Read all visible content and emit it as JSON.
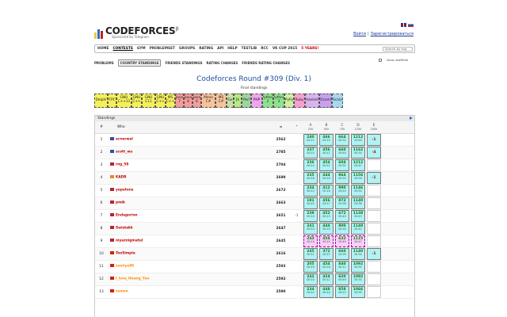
{
  "header": {
    "logo_text": "CODEFORCES",
    "logo_beta": "β",
    "logo_sub": "Sponsored by Telegram",
    "login": "Войти",
    "register": "Зарегистрироваться",
    "auth_sep": "|",
    "colors": {
      "bar1": "#f6c43b",
      "bar2": "#2b6cc4",
      "bar3": "#c51f1f"
    }
  },
  "menu": {
    "items": [
      "HOME",
      "CONTESTS",
      "GYM",
      "PROBLEMSET",
      "GROUPS",
      "RATING",
      "API",
      "HELP",
      "TESTLIB",
      "RCC",
      "VK CUP 2015",
      "5 YEARS!"
    ],
    "active": "CONTESTS",
    "search_placeholder": "Search by tag"
  },
  "subnav": {
    "items": [
      "PROBLEMS",
      "COUNTRY STANDINGS",
      "FRIENDS STANDINGS",
      "RATING CHANGES",
      "FRIENDS RATING CHANGES"
    ],
    "selected": "COUNTRY STANDINGS",
    "show_unofficial": "show unofficial"
  },
  "contest": {
    "title": "Codeforces Round #309 (Div. 1)",
    "subtitle": "Final standings"
  },
  "languages": [
    {
      "label": "Delphi",
      "color": "#f4f05a"
    },
    {
      "label": "FPC",
      "color": "#f4f05a"
    },
    {
      "label": "GNU C++11",
      "color": "#f4f05a"
    },
    {
      "label": "GNU C++",
      "color": "#f4f05a"
    },
    {
      "label": "GNU C11",
      "color": "#f4f05a"
    },
    {
      "label": "GNU C++",
      "color": "#f4f05a"
    },
    {
      "label": "MS C++",
      "color": "#f4f05a"
    },
    {
      "label": "Java 7",
      "color": "#f59c9c"
    },
    {
      "label": "Java 8",
      "color": "#f59c9c"
    },
    {
      "label": "Java 6",
      "color": "#f59c9c"
    },
    {
      "label": "Mono C#",
      "color": "#f8c29a"
    },
    {
      "label": "MS C#",
      "color": "#f8c29a"
    },
    {
      "label": "Go",
      "color": "#c5e1a5"
    },
    {
      "label": "JS",
      "color": "#b8e986"
    },
    {
      "label": "Perl",
      "color": "#9fd3a0"
    },
    {
      "label": "PHP",
      "color": "#f0a5f0"
    },
    {
      "label": "Python 2",
      "color": "#8fe08f"
    },
    {
      "label": "Python 3",
      "color": "#8fe08f"
    },
    {
      "label": "PyPy",
      "color": "#d0f0a0"
    },
    {
      "label": "Ruby",
      "color": "#f5a0d0"
    },
    {
      "label": "Haskell",
      "color": "#d9b3f0"
    },
    {
      "label": "Ocaml",
      "color": "#c9a0f0"
    },
    {
      "label": "Scala",
      "color": "#a8d8f0"
    }
  ],
  "standings": {
    "heading": "Standings",
    "columns": {
      "rank": "#",
      "who": "Who",
      "points": "=",
      "penalty": "*"
    },
    "problems": [
      {
        "letter": "A",
        "max": "250"
      },
      {
        "letter": "B",
        "max": "500"
      },
      {
        "letter": "C",
        "max": "750"
      },
      {
        "letter": "D",
        "max": "1250"
      },
      {
        "letter": "E",
        "max": "2000"
      }
    ],
    "rows": [
      {
        "rank": "1",
        "who": "ecnerwal",
        "flag": "us",
        "points": "2562",
        "penalty": "",
        "cells": [
          {
            "v": "240",
            "t": "00:11"
          },
          {
            "v": "466",
            "t": "00:10"
          },
          {
            "v": "664",
            "t": "00:32"
          },
          {
            "v": "1212",
            "t": "00:49"
          },
          {
            "v": "-1",
            "r": true
          }
        ]
      },
      {
        "rank": "2",
        "who": "scott_wu",
        "flag": "us",
        "points": "2785",
        "penalty": "",
        "cells": [
          {
            "v": "237",
            "t": "00:10"
          },
          {
            "v": "456",
            "t": "00:11"
          },
          {
            "v": "660",
            "t": "00:44"
          },
          {
            "v": "1162",
            "t": "00:34"
          },
          {
            "v": "-4",
            "r": true
          }
        ]
      },
      {
        "rank": "3",
        "who": "rng_58",
        "flag": "ru",
        "points": "2704",
        "penalty": "",
        "cells": [
          {
            "v": "236",
            "t": "00:14"
          },
          {
            "v": "454",
            "t": "00:21"
          },
          {
            "v": "604",
            "t": "00:31"
          },
          {
            "v": "1212",
            "t": "00:47"
          },
          {
            "v": ""
          }
        ]
      },
      {
        "rank": "4",
        "who": "KADR",
        "flag": "in",
        "points": "2699",
        "penalty": "",
        "cells": [
          {
            "v": "235",
            "t": "00:16"
          },
          {
            "v": "444",
            "t": "00:16"
          },
          {
            "v": "864",
            "t": "00:20"
          },
          {
            "v": "1156",
            "t": "00:16"
          },
          {
            "v": "-1",
            "r": true
          }
        ]
      },
      {
        "rank": "5",
        "who": "yeputons",
        "flag": "ru",
        "points": "2672",
        "penalty": "",
        "cells": [
          {
            "v": "234",
            "t": "00:10"
          },
          {
            "v": "412",
            "t": "00:16"
          },
          {
            "v": "990",
            "t": "00:24"
          },
          {
            "v": "1146",
            "t": "00:30"
          },
          {
            "v": ""
          }
        ]
      },
      {
        "rank": "6",
        "who": "pmik",
        "flag": "ru",
        "points": "2663",
        "penalty": "",
        "cells": [
          {
            "v": "191",
            "t": "00:20"
          },
          {
            "v": "456",
            "t": "00:17"
          },
          {
            "v": "872",
            "t": "00:36"
          },
          {
            "v": "1140",
            "t": "00:36"
          },
          {
            "v": ""
          }
        ]
      },
      {
        "rank": "7",
        "who": "Endagorion",
        "flag": "ru",
        "points": "2651",
        "penalty": "-1",
        "cells": [
          {
            "v": "239",
            "t": "00:14"
          },
          {
            "v": "452",
            "t": "00:13"
          },
          {
            "v": "672",
            "t": "00:40"
          },
          {
            "v": "1138",
            "t": "00:43"
          },
          {
            "v": ""
          }
        ]
      },
      {
        "rank": "8",
        "who": "Swistakk",
        "flag": "ru",
        "points": "2647",
        "penalty": "",
        "cells": [
          {
            "v": "241",
            "t": "00:10"
          },
          {
            "v": "444",
            "t": "00:19"
          },
          {
            "v": "800",
            "t": "00:18"
          },
          {
            "v": "1148",
            "t": "00:42"
          },
          {
            "v": ""
          }
        ]
      },
      {
        "rank": "9",
        "who": "niyaznigmatul",
        "flag": "ru",
        "points": "2645",
        "penalty": "",
        "cells": [
          {
            "v": "243",
            "t": "00:14",
            "pink": true
          },
          {
            "v": "454",
            "t": "00:15",
            "pink": true
          },
          {
            "v": "632",
            "t": "00:49",
            "pink": true
          },
          {
            "v": "1115",
            "t": "00:47",
            "pink": true
          },
          {
            "v": ""
          }
        ]
      },
      {
        "rank": "10",
        "who": "TooSimple",
        "flag": "cn",
        "points": "2616",
        "penalty": "",
        "cells": [
          {
            "v": "245",
            "t": "00:11"
          },
          {
            "v": "372",
            "t": "00:27"
          },
          {
            "v": "660",
            "t": "00:39"
          },
          {
            "v": "1140",
            "t": "00:34"
          },
          {
            "v": "-1",
            "r": true
          }
        ]
      },
      {
        "rank": "11",
        "who": "zemlya89",
        "flag": "cn",
        "points": "2593",
        "penalty": "",
        "cells": [
          {
            "v": "205",
            "t": "00:19"
          },
          {
            "v": "454",
            "t": "00:16"
          },
          {
            "v": "840",
            "t": "00:11"
          },
          {
            "v": "1092",
            "t": "00:35"
          },
          {
            "v": ""
          }
        ]
      },
      {
        "rank": "12",
        "who": "I_love_Hoang_Yen",
        "flag": "cn",
        "points": "2592",
        "penalty": "",
        "cells": [
          {
            "v": "242",
            "t": "00:10"
          },
          {
            "v": "424",
            "t": "00:11"
          },
          {
            "v": "620",
            "t": "00:49"
          },
          {
            "v": "1082",
            "t": "00:35"
          },
          {
            "v": ""
          }
        ]
      },
      {
        "rank": "13",
        "who": "zemen",
        "flag": "cn",
        "points": "2590",
        "penalty": "",
        "cells": [
          {
            "v": "234",
            "t": "00:12"
          },
          {
            "v": "448",
            "t": "00:14"
          },
          {
            "v": "858",
            "t": "00:23"
          },
          {
            "v": "1066",
            "t": "00:39"
          },
          {
            "v": ""
          }
        ]
      }
    ]
  },
  "colors": {
    "accepted": "#aff3f3",
    "selected_pink": "#f6d0f6",
    "empty": "#ffffff",
    "flag_us": "#3050a0",
    "flag_ru": "#c02030",
    "flag_in": "#e08a20",
    "flag_cn": "#d81e06",
    "rank_colors": [
      "#c00000",
      "#c00000",
      "#c00000",
      "#c00000",
      "#c00000",
      "#c00000",
      "#c00000",
      "#c00000",
      "#c00000",
      "#c00000",
      "#ff8c00",
      "#ff8c00",
      "#ff8c00"
    ]
  }
}
